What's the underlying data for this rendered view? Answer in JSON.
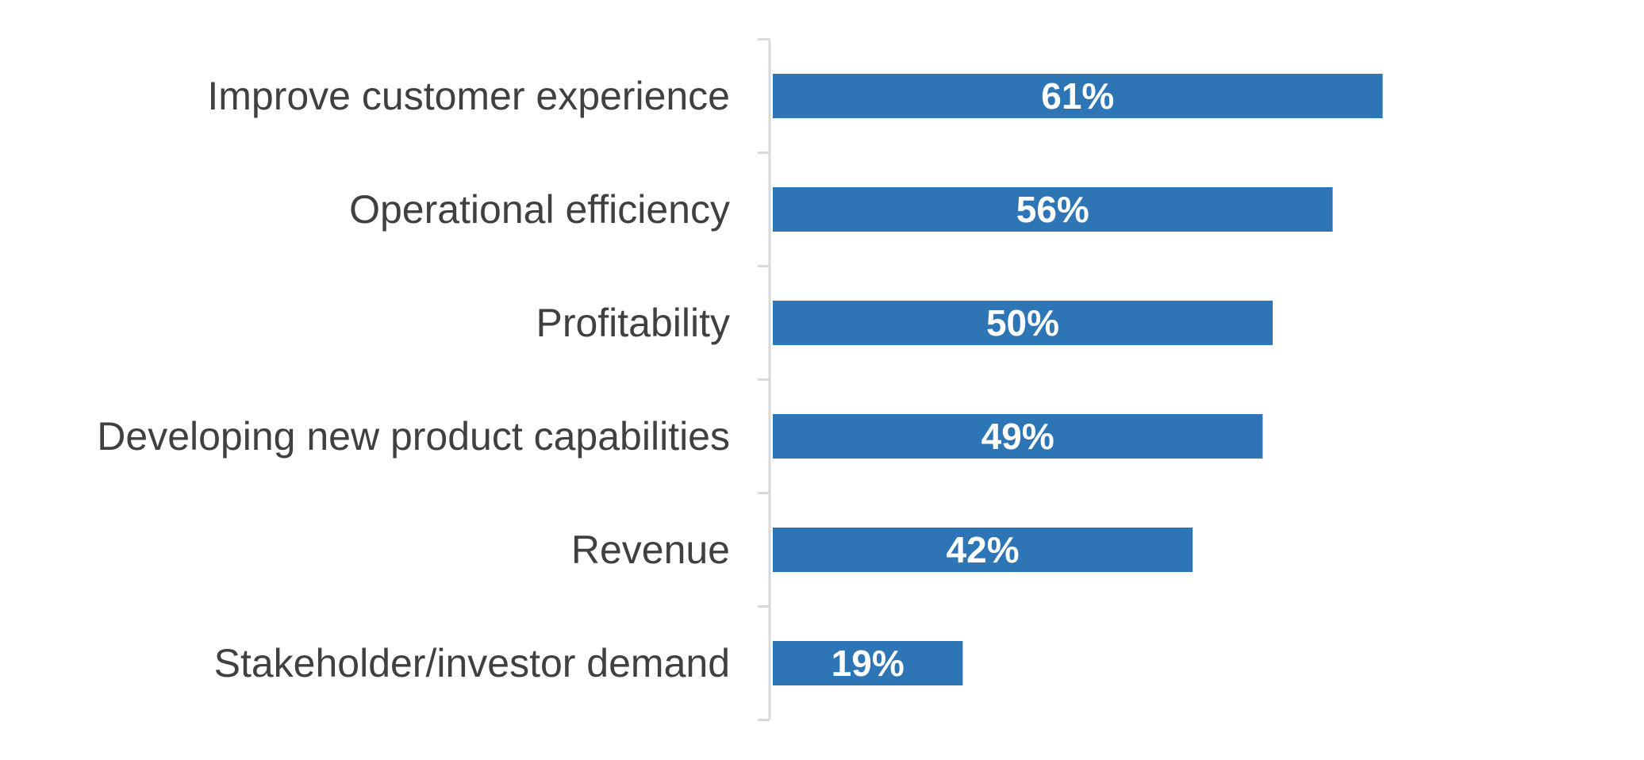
{
  "chart_data": {
    "type": "bar",
    "orientation": "horizontal",
    "title": "",
    "xlabel": "",
    "ylabel": "",
    "categories": [
      "Improve customer experience",
      "Operational efficiency",
      "Profitability",
      "Developing new product capabilities",
      "Revenue",
      "Stakeholder/investor demand"
    ],
    "values": [
      61,
      56,
      50,
      49,
      42,
      19
    ],
    "value_labels": [
      "61%",
      "56%",
      "50%",
      "49%",
      "42%",
      "19%"
    ],
    "xlim": [
      0,
      100
    ],
    "grid": false,
    "legend": "none",
    "bar_color": "#2E75B6",
    "axis_color": "#D9D9D9",
    "label_color": "#404040",
    "value_label_color": "#FFFFFF"
  }
}
